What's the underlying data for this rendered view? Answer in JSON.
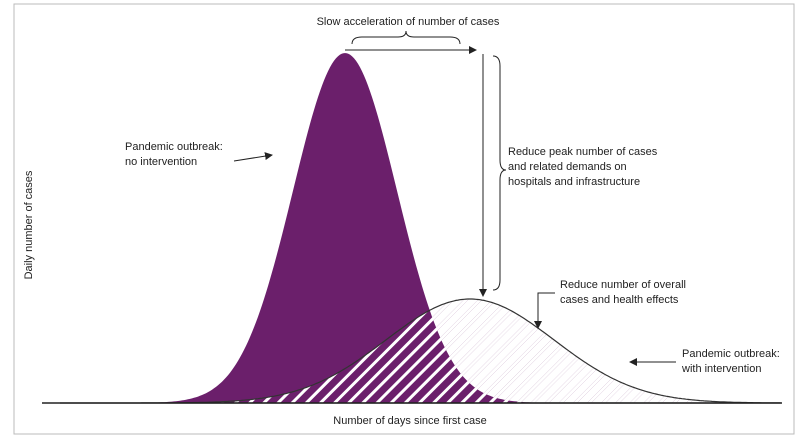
{
  "annotations": {
    "slow_acceleration": "Slow acceleration of number of cases",
    "reduce_peak": [
      "Reduce peak number of cases",
      "and related demands on",
      "hospitals and infrastructure"
    ],
    "no_intervention": [
      "Pandemic outbreak:",
      "no intervention"
    ],
    "reduce_overall": [
      "Reduce number of overall",
      "cases and health effects"
    ],
    "with_intervention": [
      "Pandemic outbreak:",
      "with intervention"
    ]
  },
  "axes": {
    "x_label": "Number of days since first case",
    "y_label": "Daily number of cases"
  }
}
